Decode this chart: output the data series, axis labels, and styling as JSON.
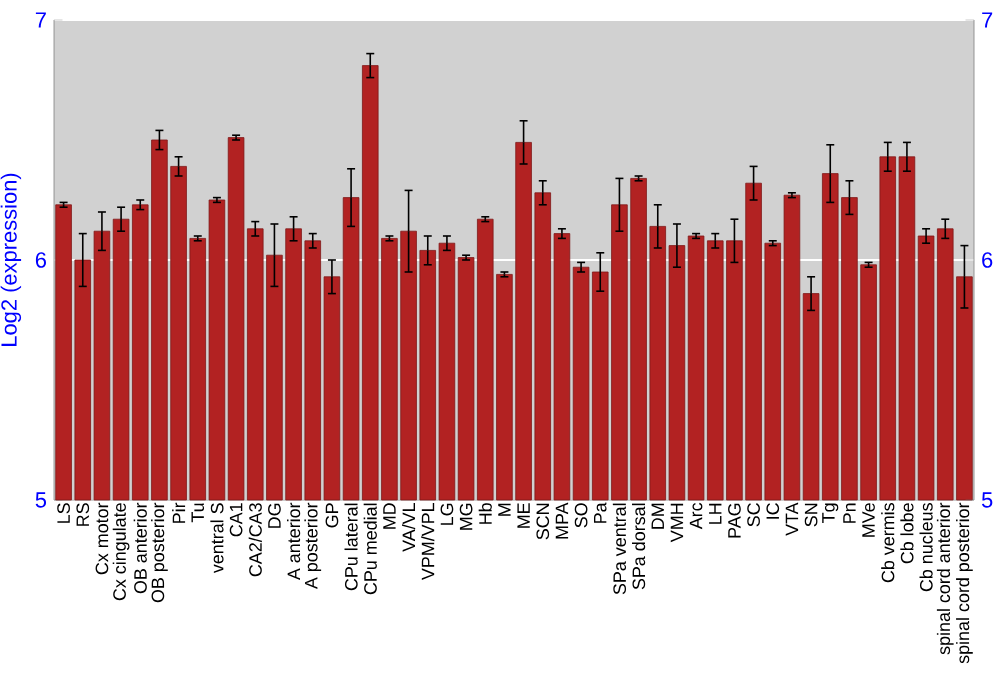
{
  "chart_data": {
    "type": "bar",
    "ylabel": "Log2 (expression)",
    "color": "#b22222",
    "grid": "y",
    "categories": [
      "LS",
      "RS",
      "Cx motor",
      "Cx cingulate",
      "OB anterior",
      "OB posterior",
      "Pir",
      "Tu",
      "ventral S",
      "CA1",
      "CA2/CA3",
      "DG",
      "A anterior",
      "A posterior",
      "GP",
      "CPu lateral",
      "CPu medial",
      "MD",
      "VA/VL",
      "VPM/VPL",
      "LG",
      "MG",
      "Hb",
      "M",
      "ME",
      "SCN",
      "MPA",
      "SO",
      "Pa",
      "SPa ventral",
      "SPa dorsal",
      "DM",
      "VMH",
      "Arc",
      "LH",
      "PAG",
      "SC",
      "IC",
      "VTA",
      "SN",
      "Tg",
      "Pn",
      "MVe",
      "Cb vermis",
      "Cb lobe",
      "Cb nucleus",
      "spinal cord anterior",
      "spinal cord posterior"
    ],
    "values": [
      6.23,
      6.0,
      6.12,
      6.17,
      6.23,
      6.5,
      6.39,
      6.09,
      6.25,
      6.51,
      6.13,
      6.02,
      6.13,
      6.08,
      5.93,
      6.26,
      6.81,
      6.09,
      6.12,
      6.04,
      6.07,
      6.01,
      6.17,
      5.94,
      6.49,
      6.28,
      6.11,
      5.97,
      5.95,
      6.23,
      6.34,
      6.14,
      6.06,
      6.1,
      6.08,
      6.08,
      6.32,
      6.07,
      6.27,
      5.86,
      6.36,
      6.26,
      5.98,
      6.43,
      6.43,
      6.1,
      6.13,
      5.93
    ],
    "errors": [
      0.01,
      0.11,
      0.08,
      0.05,
      0.02,
      0.04,
      0.04,
      0.01,
      0.01,
      0.01,
      0.03,
      0.13,
      0.05,
      0.03,
      0.07,
      0.12,
      0.05,
      0.01,
      0.17,
      0.06,
      0.03,
      0.01,
      0.01,
      0.01,
      0.09,
      0.05,
      0.02,
      0.02,
      0.08,
      0.11,
      0.01,
      0.09,
      0.09,
      0.01,
      0.03,
      0.09,
      0.07,
      0.01,
      0.01,
      0.07,
      0.12,
      0.07,
      0.01,
      0.06,
      0.06,
      0.03,
      0.04,
      0.13
    ],
    "ylim": [
      5,
      7
    ],
    "yticks": [
      5,
      6,
      7
    ],
    "y2lim": [
      5,
      7
    ],
    "y2ticks": [
      5,
      6,
      7
    ]
  }
}
